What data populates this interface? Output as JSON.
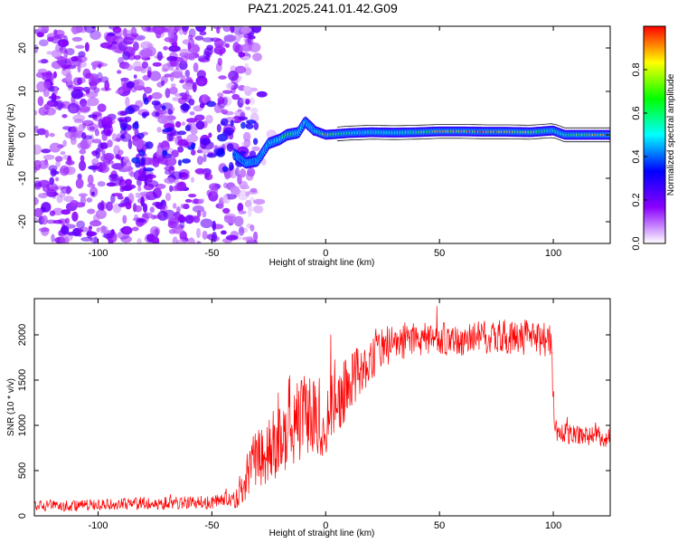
{
  "title": "PAZ1.2025.241.01.42.G09",
  "chart_data": [
    {
      "type": "heatmap",
      "xlabel": "Height of straight line (km)",
      "ylabel": "Frequency (Hz)",
      "xlim": [
        -128,
        125
      ],
      "ylim": [
        -25,
        25
      ],
      "xticks": [
        -100,
        -50,
        0,
        50,
        100
      ],
      "yticks": [
        -20,
        -10,
        0,
        10,
        20
      ],
      "colorbar": {
        "label": "Normalized spectral amplitude",
        "range": [
          0,
          1
        ],
        "ticks": [
          0.0,
          0.2,
          0.4,
          0.6,
          0.8
        ],
        "stops": [
          "#ffffff",
          "#8a00ff",
          "#0000ff",
          "#00ffff",
          "#00ff00",
          "#ffff00",
          "#ff0000"
        ]
      },
      "ridge": [
        {
          "x": -40,
          "f": -4.5,
          "amp": 0.35
        },
        {
          "x": -35,
          "f": -6.5,
          "amp": 0.45
        },
        {
          "x": -30,
          "f": -6.0,
          "amp": 0.4
        },
        {
          "x": -25,
          "f": -2.0,
          "amp": 0.45
        },
        {
          "x": -20,
          "f": -1.0,
          "amp": 0.55
        },
        {
          "x": -17,
          "f": 0.0,
          "amp": 0.75
        },
        {
          "x": -12,
          "f": 0.5,
          "amp": 0.5
        },
        {
          "x": -9,
          "f": 3.0,
          "amp": 0.45
        },
        {
          "x": -5,
          "f": 1.0,
          "amp": 0.45
        },
        {
          "x": 0,
          "f": 0.0,
          "amp": 0.85
        },
        {
          "x": 10,
          "f": 0.4,
          "amp": 0.55
        },
        {
          "x": 20,
          "f": 0.6,
          "amp": 0.5
        },
        {
          "x": 30,
          "f": 0.5,
          "amp": 0.52
        },
        {
          "x": 40,
          "f": 0.6,
          "amp": 0.6
        },
        {
          "x": 50,
          "f": 0.8,
          "amp": 0.9
        },
        {
          "x": 60,
          "f": 0.8,
          "amp": 0.85
        },
        {
          "x": 70,
          "f": 0.7,
          "amp": 0.9
        },
        {
          "x": 80,
          "f": 0.7,
          "amp": 0.85
        },
        {
          "x": 90,
          "f": 0.6,
          "amp": 0.8
        },
        {
          "x": 100,
          "f": 1.0,
          "amp": 0.5
        },
        {
          "x": 105,
          "f": 0.0,
          "amp": 0.6
        },
        {
          "x": 115,
          "f": 0.0,
          "amp": 0.8
        },
        {
          "x": 125,
          "f": 0.0,
          "amp": 0.8
        }
      ]
    },
    {
      "type": "line",
      "xlabel": "Height of straight line (km)",
      "ylabel": "SNR (10 * v/v)",
      "xlim": [
        -128,
        125
      ],
      "ylim": [
        0,
        2400
      ],
      "xticks": [
        -100,
        -50,
        0,
        50,
        100
      ],
      "yticks": [
        0,
        500,
        1000,
        1500,
        2000
      ],
      "color": "#ff0000",
      "series": [
        {
          "name": "SNR",
          "x": [
            -128,
            -110,
            -90,
            -70,
            -50,
            -40,
            -38,
            -35,
            -30,
            -25,
            -20,
            -15,
            -10,
            -5,
            0,
            5,
            10,
            15,
            20,
            25,
            30,
            40,
            50,
            60,
            70,
            80,
            90,
            99,
            100,
            101,
            105,
            110,
            120,
            125
          ],
          "values": [
            110,
            110,
            130,
            140,
            150,
            170,
            260,
            480,
            650,
            700,
            870,
            1000,
            1100,
            1150,
            1050,
            1250,
            1450,
            1600,
            1750,
            1850,
            1900,
            1950,
            1960,
            1960,
            1970,
            1980,
            1970,
            1950,
            1300,
            950,
            900,
            900,
            880,
            850
          ],
          "noise": [
            60,
            60,
            65,
            70,
            80,
            90,
            160,
            300,
            360,
            380,
            420,
            440,
            460,
            460,
            420,
            380,
            330,
            280,
            250,
            220,
            200,
            190,
            190,
            190,
            190,
            200,
            200,
            200,
            200,
            120,
            120,
            110,
            110,
            110
          ]
        }
      ]
    }
  ]
}
